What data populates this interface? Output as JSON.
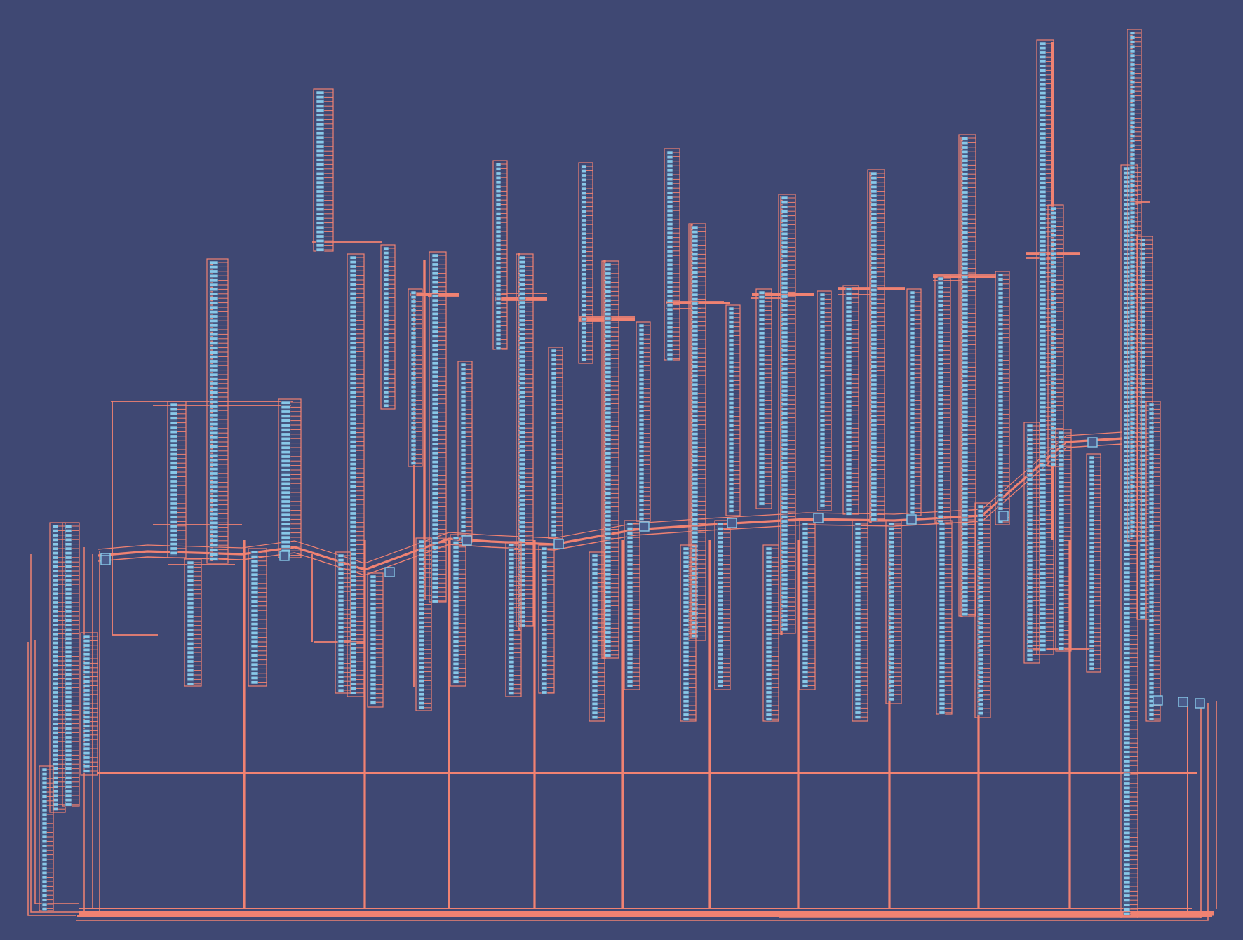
{
  "diagram": {
    "kind": "schematic-netlist",
    "colors": {
      "background": "#3f4873",
      "wire": "#f08272",
      "pin": "#88c8e8",
      "cell": "#4a5a8a"
    },
    "labels": []
  }
}
